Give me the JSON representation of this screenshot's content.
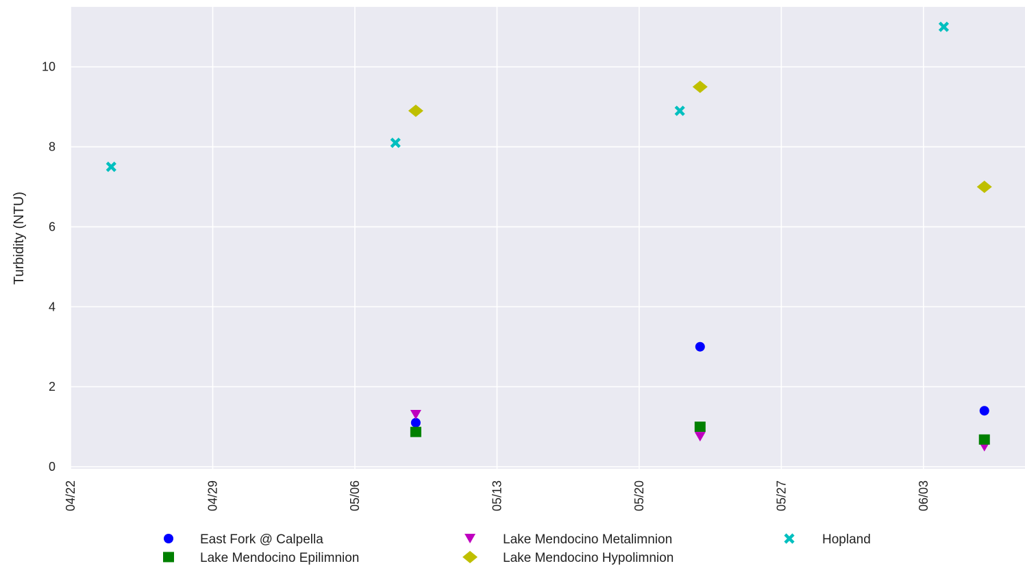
{
  "chart_data": {
    "type": "scatter",
    "title": "",
    "xlabel": "",
    "ylabel": "Turbidity (NTU)",
    "x_ticks": [
      "04/22",
      "04/29",
      "05/06",
      "05/13",
      "05/20",
      "05/27",
      "06/03"
    ],
    "x_range": [
      "2023-04-22",
      "2023-06-08"
    ],
    "ylim": [
      0,
      11.5
    ],
    "y_ticks": [
      0,
      2,
      4,
      6,
      8,
      10
    ],
    "grid": true,
    "legend_position": "bottom",
    "series": [
      {
        "name": "East Fork @ Calpella",
        "marker": "circle",
        "color": "#0000ff",
        "points": [
          [
            "05/09",
            1.1
          ],
          [
            "05/23",
            3.0
          ],
          [
            "06/06",
            1.4
          ]
        ]
      },
      {
        "name": "Lake Mendocino Metalimnion",
        "marker": "triangle-down",
        "color": "#bf00bf",
        "points": [
          [
            "05/09",
            1.3
          ],
          [
            "05/23",
            0.75
          ],
          [
            "06/06",
            0.5
          ]
        ]
      },
      {
        "name": "Hopland",
        "marker": "x",
        "color": "#00bfbf",
        "points": [
          [
            "04/24",
            7.5
          ],
          [
            "05/08",
            8.1
          ],
          [
            "05/22",
            8.9
          ],
          [
            "06/04",
            11.0
          ]
        ]
      },
      {
        "name": "Lake Mendocino Epilimnion",
        "marker": "square",
        "color": "#008000",
        "points": [
          [
            "05/09",
            0.87
          ],
          [
            "05/23",
            1.0
          ],
          [
            "06/06",
            0.68
          ]
        ]
      },
      {
        "name": "Lake Mendocino Hypolimnion",
        "marker": "diamond",
        "color": "#bfbf00",
        "points": [
          [
            "05/09",
            8.9
          ],
          [
            "05/23",
            9.5
          ],
          [
            "06/06",
            7.0
          ]
        ]
      }
    ]
  }
}
